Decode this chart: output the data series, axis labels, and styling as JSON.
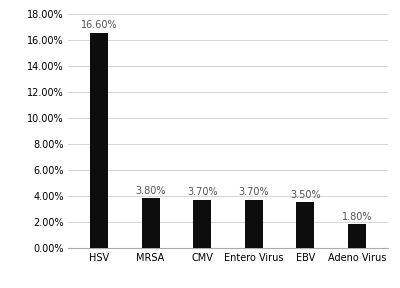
{
  "categories": [
    "HSV",
    "MRSA",
    "CMV",
    "Entero Virus",
    "EBV",
    "Adeno Virus"
  ],
  "values": [
    16.6,
    3.8,
    3.7,
    3.7,
    3.5,
    1.8
  ],
  "labels": [
    "16.60%",
    "3.80%",
    "3.70%",
    "3.70%",
    "3.50%",
    "1.80%"
  ],
  "bar_color": "#0d0d0d",
  "background_color": "#ffffff",
  "ylim": [
    0,
    18.0
  ],
  "yticks": [
    0,
    2,
    4,
    6,
    8,
    10,
    12,
    14,
    16,
    18
  ],
  "ytick_labels": [
    "0.00%",
    "2.00%",
    "4.00%",
    "6.00%",
    "8.00%",
    "10.00%",
    "12.00%",
    "14.00%",
    "16.00%",
    "18.00%"
  ],
  "grid_color": "#d0d0d0",
  "label_fontsize": 7,
  "tick_fontsize": 7,
  "bar_width": 0.35
}
